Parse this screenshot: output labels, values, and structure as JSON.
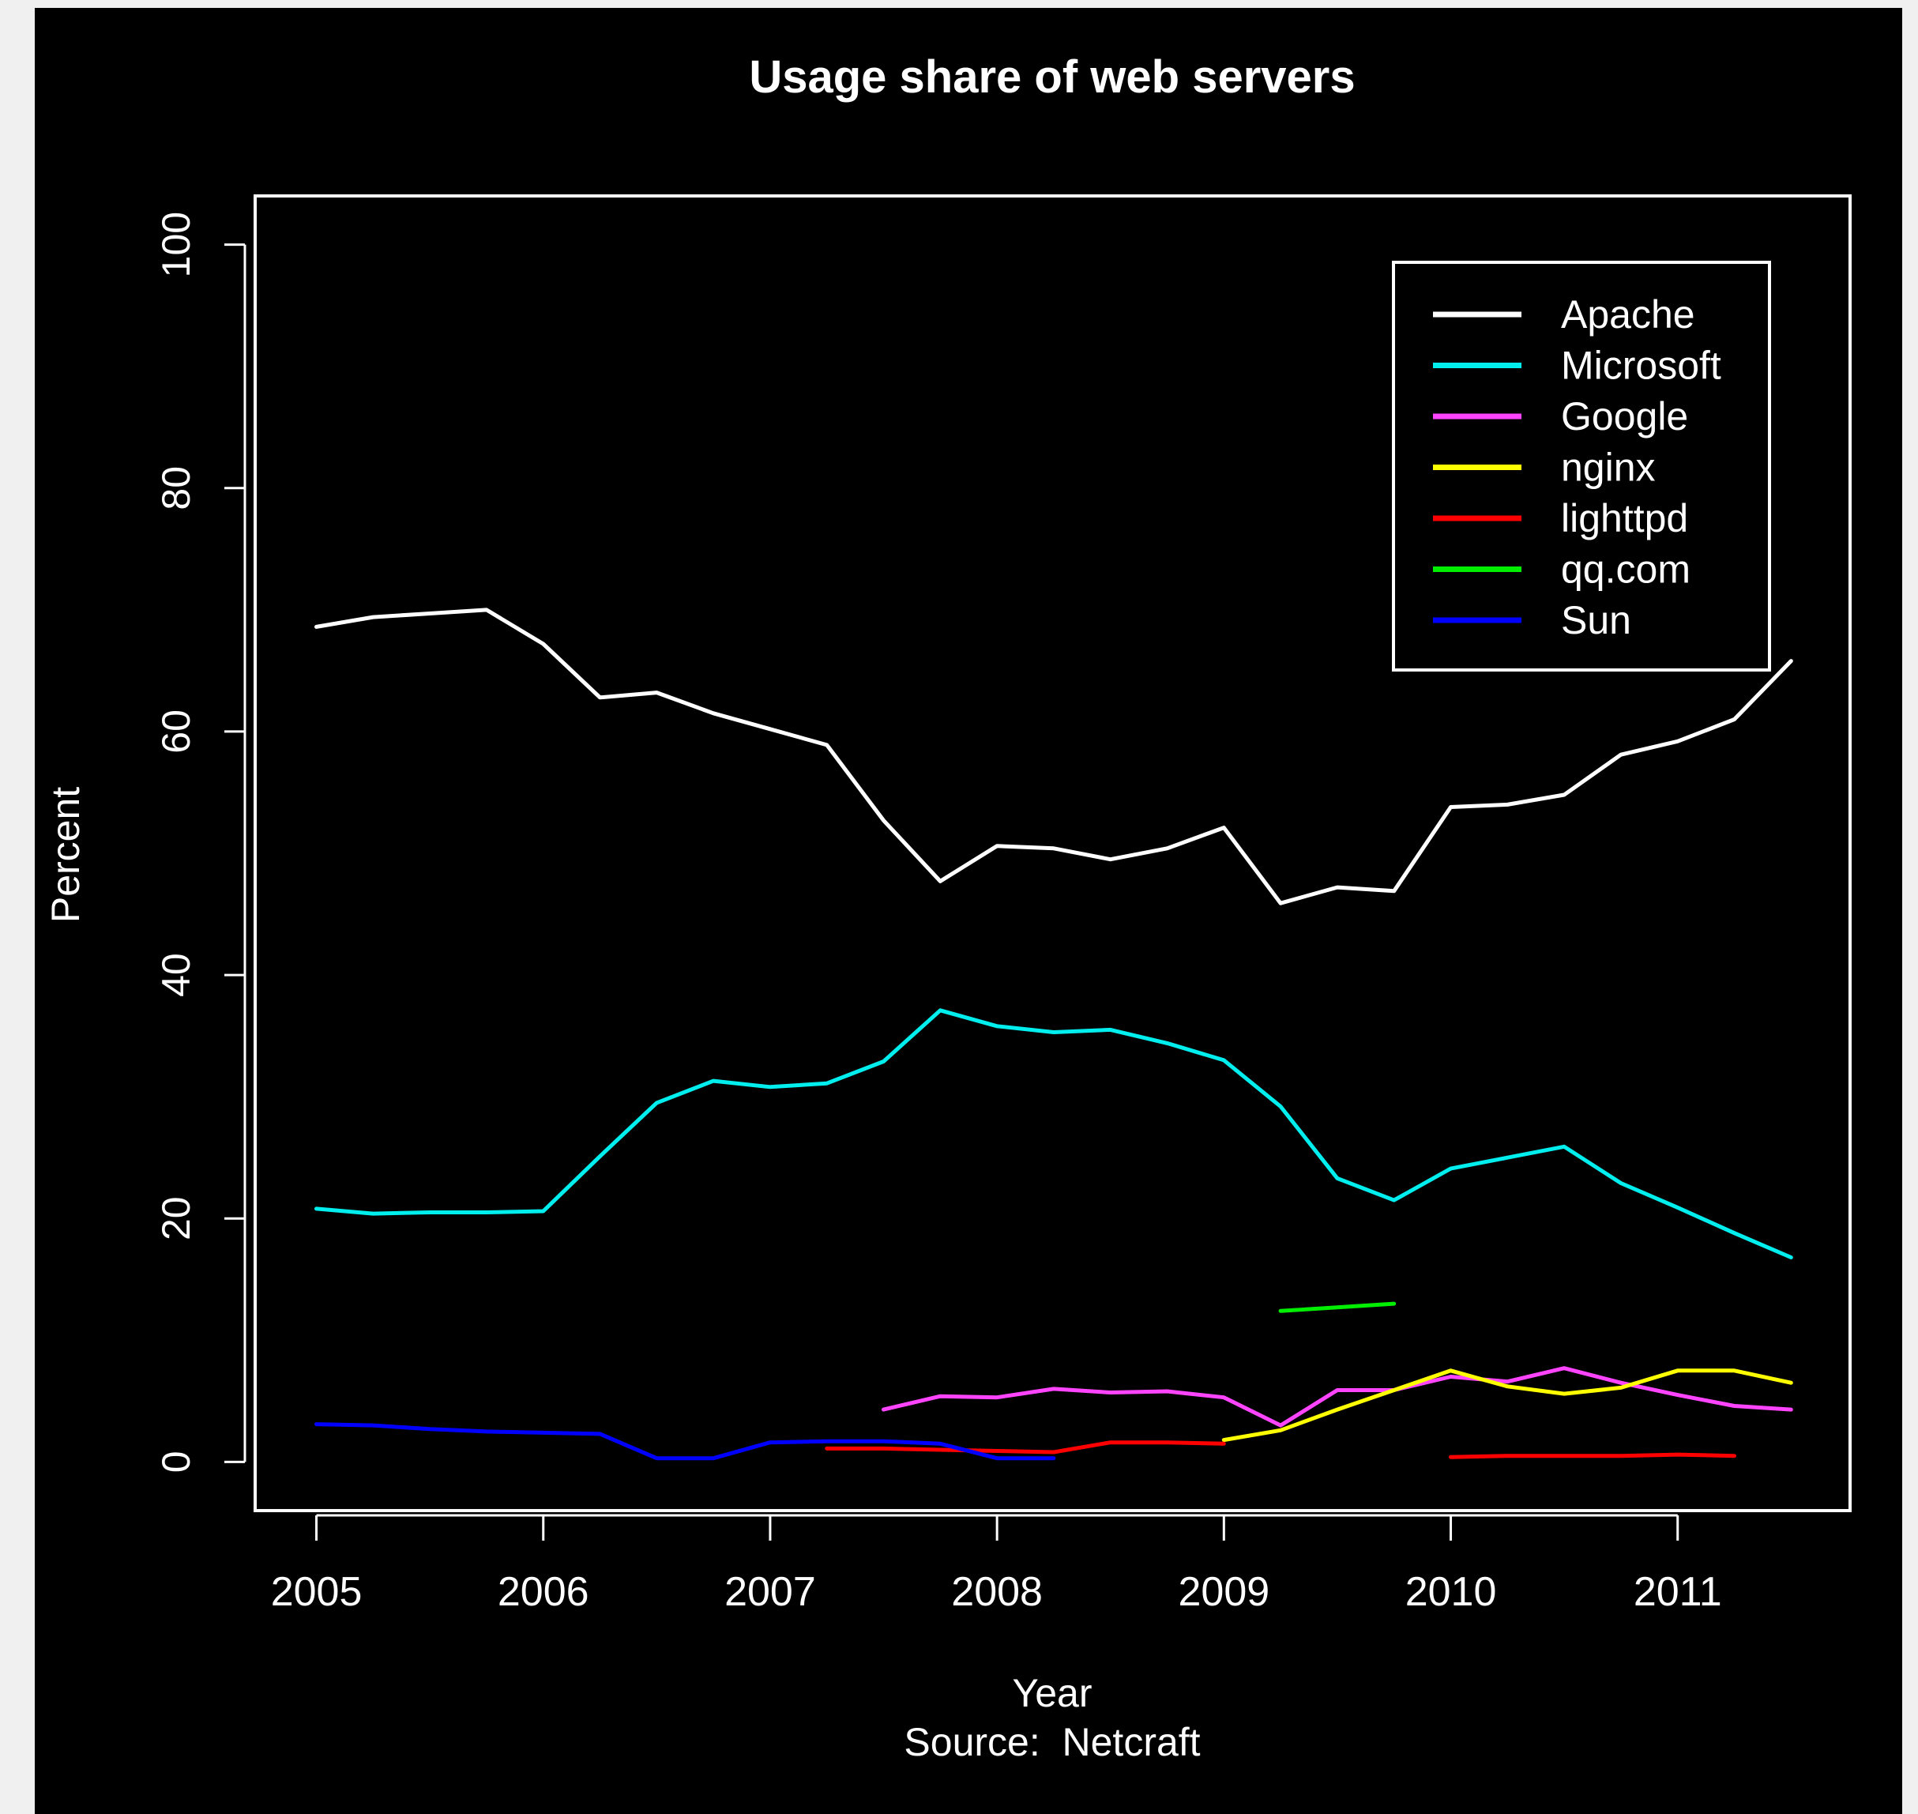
{
  "chart_data": {
    "type": "line",
    "title": "Usage share of web servers",
    "xlabel": "Year",
    "source": "Source:  Netcraft",
    "ylabel": "Percent",
    "xlim": [
      2004.73,
      2011.76
    ],
    "ylim": [
      -4,
      104
    ],
    "x_ticks": [
      2005,
      2006,
      2007,
      2008,
      2009,
      2010,
      2011
    ],
    "x_tick_labels": [
      "2005",
      "2006",
      "2007",
      "2008",
      "2009",
      "2010",
      "2011"
    ],
    "y_ticks": [
      0,
      20,
      40,
      60,
      80,
      100
    ],
    "y_tick_labels": [
      "0",
      "20",
      "40",
      "60",
      "80",
      "100"
    ],
    "grid": false,
    "legend_position": "top-right",
    "background": "#000000",
    "foreground": "#ffffff",
    "series": [
      {
        "name": "Apache",
        "color": "#ffffff",
        "points": [
          [
            2005.0,
            68.6
          ],
          [
            2005.25,
            69.4
          ],
          [
            2005.5,
            69.7
          ],
          [
            2005.75,
            70.0
          ],
          [
            2006.0,
            67.2
          ],
          [
            2006.25,
            62.8
          ],
          [
            2006.5,
            63.2
          ],
          [
            2006.75,
            61.5
          ],
          [
            2007.0,
            60.2
          ],
          [
            2007.25,
            58.9
          ],
          [
            2007.5,
            52.7
          ],
          [
            2007.75,
            47.7
          ],
          [
            2008.0,
            50.6
          ],
          [
            2008.25,
            50.4
          ],
          [
            2008.5,
            49.5
          ],
          [
            2008.75,
            50.4
          ],
          [
            2009.0,
            52.1
          ],
          [
            2009.25,
            45.9
          ],
          [
            2009.5,
            47.2
          ],
          [
            2009.75,
            46.9
          ],
          [
            2010.0,
            53.8
          ],
          [
            2010.25,
            54.0
          ],
          [
            2010.5,
            54.8
          ],
          [
            2010.75,
            58.1
          ],
          [
            2011.0,
            59.2
          ],
          [
            2011.25,
            61.0
          ],
          [
            2011.5,
            65.8
          ]
        ]
      },
      {
        "name": "Microsoft",
        "color": "#00eeee",
        "points": [
          [
            2005.0,
            20.8
          ],
          [
            2005.25,
            20.4
          ],
          [
            2005.5,
            20.5
          ],
          [
            2005.75,
            20.5
          ],
          [
            2006.0,
            20.6
          ],
          [
            2006.25,
            25.1
          ],
          [
            2006.5,
            29.5
          ],
          [
            2006.75,
            31.3
          ],
          [
            2007.0,
            30.8
          ],
          [
            2007.25,
            31.1
          ],
          [
            2007.5,
            32.9
          ],
          [
            2007.75,
            37.1
          ],
          [
            2008.0,
            35.8
          ],
          [
            2008.25,
            35.3
          ],
          [
            2008.5,
            35.5
          ],
          [
            2008.75,
            34.4
          ],
          [
            2009.0,
            33.0
          ],
          [
            2009.25,
            29.2
          ],
          [
            2009.5,
            23.3
          ],
          [
            2009.75,
            21.5
          ],
          [
            2010.0,
            24.1
          ],
          [
            2010.25,
            25.0
          ],
          [
            2010.5,
            25.9
          ],
          [
            2010.75,
            22.9
          ],
          [
            2011.0,
            20.9
          ],
          [
            2011.25,
            18.8
          ],
          [
            2011.5,
            16.8
          ]
        ]
      },
      {
        "name": "Google",
        "color": "#ff44ff",
        "points": [
          [
            2007.5,
            4.3
          ],
          [
            2007.75,
            5.4
          ],
          [
            2008.0,
            5.3
          ],
          [
            2008.25,
            6.0
          ],
          [
            2008.5,
            5.7
          ],
          [
            2008.75,
            5.8
          ],
          [
            2009.0,
            5.3
          ],
          [
            2009.25,
            3.0
          ],
          [
            2009.5,
            5.9
          ],
          [
            2009.75,
            5.9
          ],
          [
            2010.0,
            7.0
          ],
          [
            2010.25,
            6.6
          ],
          [
            2010.5,
            7.7
          ],
          [
            2010.75,
            6.5
          ],
          [
            2011.0,
            5.5
          ],
          [
            2011.25,
            4.6
          ],
          [
            2011.5,
            4.3
          ]
        ]
      },
      {
        "name": "nginx",
        "color": "#ffff00",
        "points": [
          [
            2009.0,
            1.8
          ],
          [
            2009.25,
            2.6
          ],
          [
            2009.5,
            4.3
          ],
          [
            2009.75,
            5.9
          ],
          [
            2010.0,
            7.5
          ],
          [
            2010.25,
            6.2
          ],
          [
            2010.5,
            5.6
          ],
          [
            2010.75,
            6.1
          ],
          [
            2011.0,
            7.5
          ],
          [
            2011.25,
            7.5
          ],
          [
            2011.5,
            6.5
          ]
        ]
      },
      {
        "name": "lighttpd",
        "color": "#ff0000",
        "segments": [
          [
            [
              2007.25,
              1.1
            ],
            [
              2007.5,
              1.1
            ],
            [
              2007.75,
              1.0
            ],
            [
              2008.0,
              0.9
            ],
            [
              2008.25,
              0.8
            ],
            [
              2008.5,
              1.6
            ],
            [
              2008.75,
              1.6
            ],
            [
              2009.0,
              1.5
            ]
          ],
          [
            [
              2010.0,
              0.4
            ],
            [
              2010.25,
              0.5
            ],
            [
              2010.5,
              0.5
            ],
            [
              2010.75,
              0.5
            ],
            [
              2011.0,
              0.6
            ],
            [
              2011.25,
              0.5
            ]
          ]
        ]
      },
      {
        "name": "qq.com",
        "color": "#00ee00",
        "points": [
          [
            2009.25,
            12.4
          ],
          [
            2009.5,
            12.7
          ],
          [
            2009.75,
            13.0
          ]
        ]
      },
      {
        "name": "Sun",
        "color": "#0000ff",
        "points": [
          [
            2005.0,
            3.1
          ],
          [
            2005.25,
            3.0
          ],
          [
            2005.5,
            2.7
          ],
          [
            2005.75,
            2.5
          ],
          [
            2006.0,
            2.4
          ],
          [
            2006.25,
            2.3
          ],
          [
            2006.5,
            0.3
          ],
          [
            2006.75,
            0.3
          ],
          [
            2007.0,
            1.6
          ],
          [
            2007.25,
            1.7
          ],
          [
            2007.5,
            1.7
          ],
          [
            2007.75,
            1.5
          ],
          [
            2008.0,
            0.3
          ],
          [
            2008.25,
            0.3
          ]
        ]
      }
    ]
  }
}
